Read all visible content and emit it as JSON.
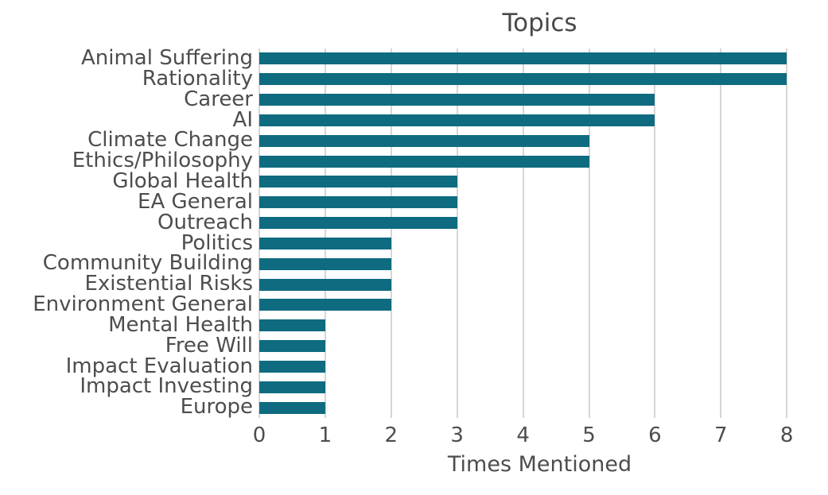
{
  "chart_data": {
    "type": "bar",
    "orientation": "horizontal",
    "title": "Topics",
    "xlabel": "Times Mentioned",
    "ylabel": "",
    "categories": [
      "Animal Suffering",
      "Rationality",
      "Career",
      "AI",
      "Climate Change",
      "Ethics/Philosophy",
      "Global Health",
      "EA General",
      "Outreach",
      "Politics",
      "Community Building",
      "Existential Risks",
      "Environment General",
      "Mental Health",
      "Free Will",
      "Impact Evaluation",
      "Impact Investing",
      "Europe"
    ],
    "values": [
      8,
      8,
      6,
      6,
      5,
      5,
      3,
      3,
      3,
      2,
      2,
      2,
      2,
      1,
      1,
      1,
      1,
      1
    ],
    "xticks": [
      0,
      1,
      2,
      3,
      4,
      5,
      6,
      7,
      8
    ],
    "xlim": [
      0,
      8.5
    ],
    "grid": true,
    "legend": false,
    "colors": {
      "bar": "#0e6b80",
      "grid": "#d6d6d6",
      "text": "#4d4d4d",
      "title": "#494949",
      "background": "#ffffff"
    }
  }
}
